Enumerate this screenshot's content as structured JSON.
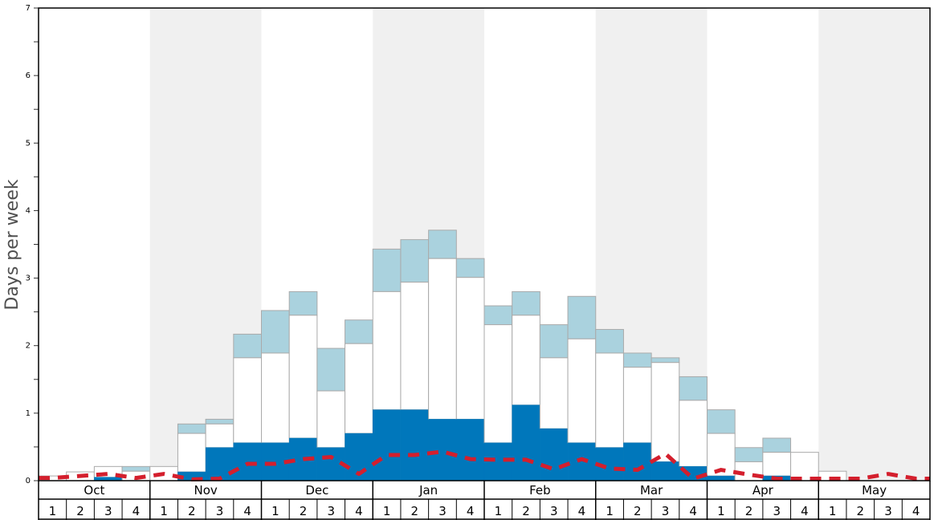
{
  "chart_data": {
    "type": "bar",
    "ylabel": "Days per week",
    "ylim": [
      0,
      7
    ],
    "y_ticks": [
      "0",
      "1",
      "2",
      "3",
      "4",
      "5",
      "6",
      "7"
    ],
    "months": [
      "Oct",
      "Nov",
      "Dec",
      "Jan",
      "Feb",
      "Mar",
      "Apr",
      "May"
    ],
    "weeks": [
      "1",
      "2",
      "3",
      "4"
    ],
    "colors": {
      "dark_segment": "#0077bb",
      "white_segment": "#ffffff",
      "light_segment": "#aad2de",
      "dashed_line": "#d41f2d",
      "shaded_month": "#f0f0f0",
      "bar_border": "#aaaaaa"
    },
    "series": [
      {
        "values": [
          0,
          0,
          0.05,
          0,
          0,
          0.13,
          0.49,
          0.56,
          0.56,
          0.63,
          0.49,
          0.7,
          1.05,
          1.05,
          0.91,
          0.91,
          0.56,
          1.12,
          0.77,
          0.56,
          0.49,
          0.56,
          0.28,
          0.21,
          0.07,
          0,
          0.07,
          0,
          0,
          0,
          0,
          0
        ]
      },
      {
        "values": [
          0.07,
          0.13,
          0.21,
          0.14,
          0.21,
          0.7,
          0.84,
          1.82,
          1.89,
          2.45,
          1.33,
          2.03,
          2.8,
          2.94,
          3.29,
          3.01,
          2.31,
          2.45,
          1.82,
          2.1,
          1.89,
          1.68,
          1.75,
          1.19,
          0.7,
          0.28,
          0.42,
          0.42,
          0.14,
          0,
          0,
          0
        ]
      },
      {
        "values": [
          0.07,
          0.13,
          0.21,
          0.21,
          0.21,
          0.84,
          0.91,
          2.17,
          2.52,
          2.8,
          1.96,
          2.38,
          3.43,
          3.57,
          3.71,
          3.29,
          2.59,
          2.8,
          2.31,
          2.73,
          2.24,
          1.89,
          1.82,
          1.54,
          1.05,
          0.49,
          0.63,
          0.42,
          0.14,
          0,
          0,
          0
        ]
      },
      {
        "values": [
          0.04,
          0.07,
          0.1,
          0.04,
          0.1,
          0.02,
          0.03,
          0.25,
          0.25,
          0.32,
          0.35,
          0.1,
          0.38,
          0.38,
          0.43,
          0.32,
          0.31,
          0.31,
          0.17,
          0.32,
          0.18,
          0.16,
          0.4,
          0.03,
          0.16,
          0.09,
          0.03,
          0.03,
          0.03,
          0.03,
          0.1,
          0.03
        ]
      }
    ]
  }
}
